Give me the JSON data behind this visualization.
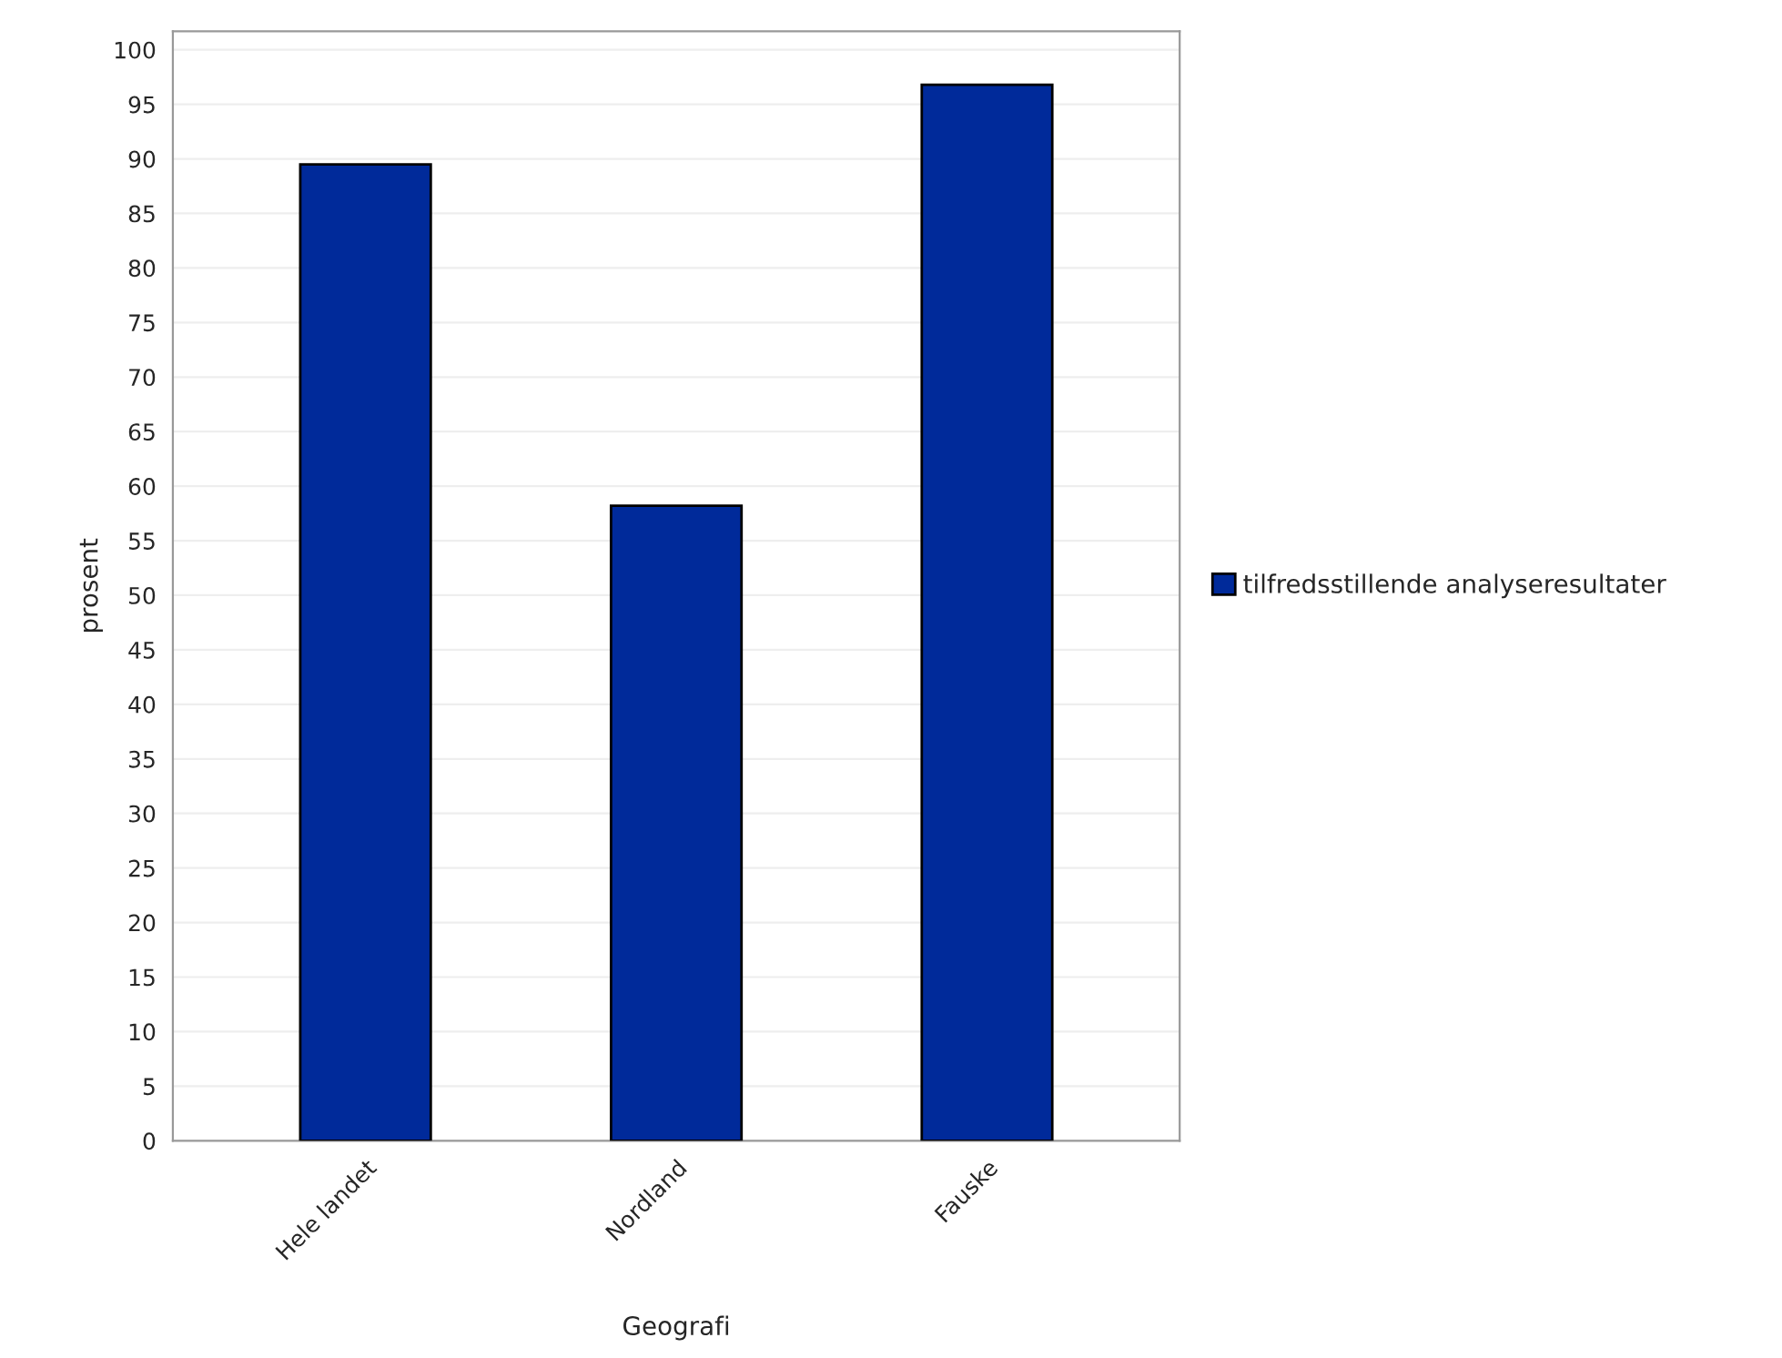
{
  "chart_data": {
    "type": "bar",
    "xlabel": "Geografi",
    "ylabel": "prosent",
    "categories": [
      "Hele landet",
      "Nordland",
      "Fauske"
    ],
    "series": [
      {
        "name": "tilfredsstillende analyseresultater",
        "color": "#002a9a",
        "values": [
          89.5,
          58.2,
          96.8
        ]
      }
    ],
    "ylim": [
      0,
      101.7
    ],
    "yticks": [
      0,
      5,
      10,
      15,
      20,
      25,
      30,
      35,
      40,
      45,
      50,
      55,
      60,
      65,
      70,
      75,
      80,
      85,
      90,
      95,
      100
    ],
    "grid": "y",
    "legend": "right"
  }
}
